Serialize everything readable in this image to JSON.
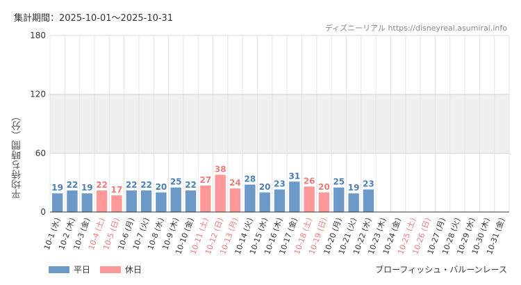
{
  "header": {
    "period": "集計期間：2025-10-01～2025-10-31",
    "source": "ディズニーリアル https://disneyreal.asumirai.info"
  },
  "footer": {
    "attraction": "ブローフィッシュ・バルーンレース"
  },
  "colors": {
    "weekday": "#6c99c8",
    "holiday": "#ff9898",
    "weekday_text": "#4a7fb5",
    "holiday_text": "#f07b7b",
    "band": "#efefef"
  },
  "chart_data": {
    "type": "bar",
    "title": "",
    "xlabel": "",
    "ylabel": "平均待ち時間（分）",
    "ylim": [
      0,
      180
    ],
    "yticks": [
      0,
      60,
      120,
      180
    ],
    "grid": true,
    "legend_position": "bottom-left",
    "legend": [
      {
        "name": "平日",
        "color": "#6c99c8"
      },
      {
        "name": "休日",
        "color": "#ff9898"
      }
    ],
    "categories": [
      "10-1 (水)",
      "10-2 (木)",
      "10-3 (金)",
      "10-4 (土)",
      "10-5 (日)",
      "10-6 (月)",
      "10-7 (火)",
      "10-8 (水)",
      "10-9 (木)",
      "10-10 (金)",
      "10-11 (土)",
      "10-12 (日)",
      "10-13 (月)",
      "10-14 (火)",
      "10-15 (水)",
      "10-16 (木)",
      "10-17 (金)",
      "10-18 (土)",
      "10-19 (日)",
      "10-20 (月)",
      "10-21 (火)",
      "10-22 (水)",
      "10-23 (木)",
      "10-24 (金)",
      "10-25 (土)",
      "10-26 (日)",
      "10-27 (月)",
      "10-28 (火)",
      "10-29 (水)",
      "10-30 (木)",
      "10-31 (金)"
    ],
    "values": [
      19,
      22,
      19,
      22,
      17,
      22,
      22,
      20,
      25,
      22,
      27,
      38,
      24,
      28,
      20,
      23,
      31,
      26,
      20,
      25,
      19,
      23,
      null,
      null,
      null,
      null,
      null,
      null,
      null,
      null,
      null
    ],
    "holiday": [
      false,
      false,
      false,
      true,
      true,
      false,
      false,
      false,
      false,
      false,
      true,
      true,
      true,
      false,
      false,
      false,
      false,
      true,
      true,
      false,
      false,
      false,
      false,
      false,
      true,
      true,
      false,
      false,
      false,
      false,
      false
    ]
  }
}
